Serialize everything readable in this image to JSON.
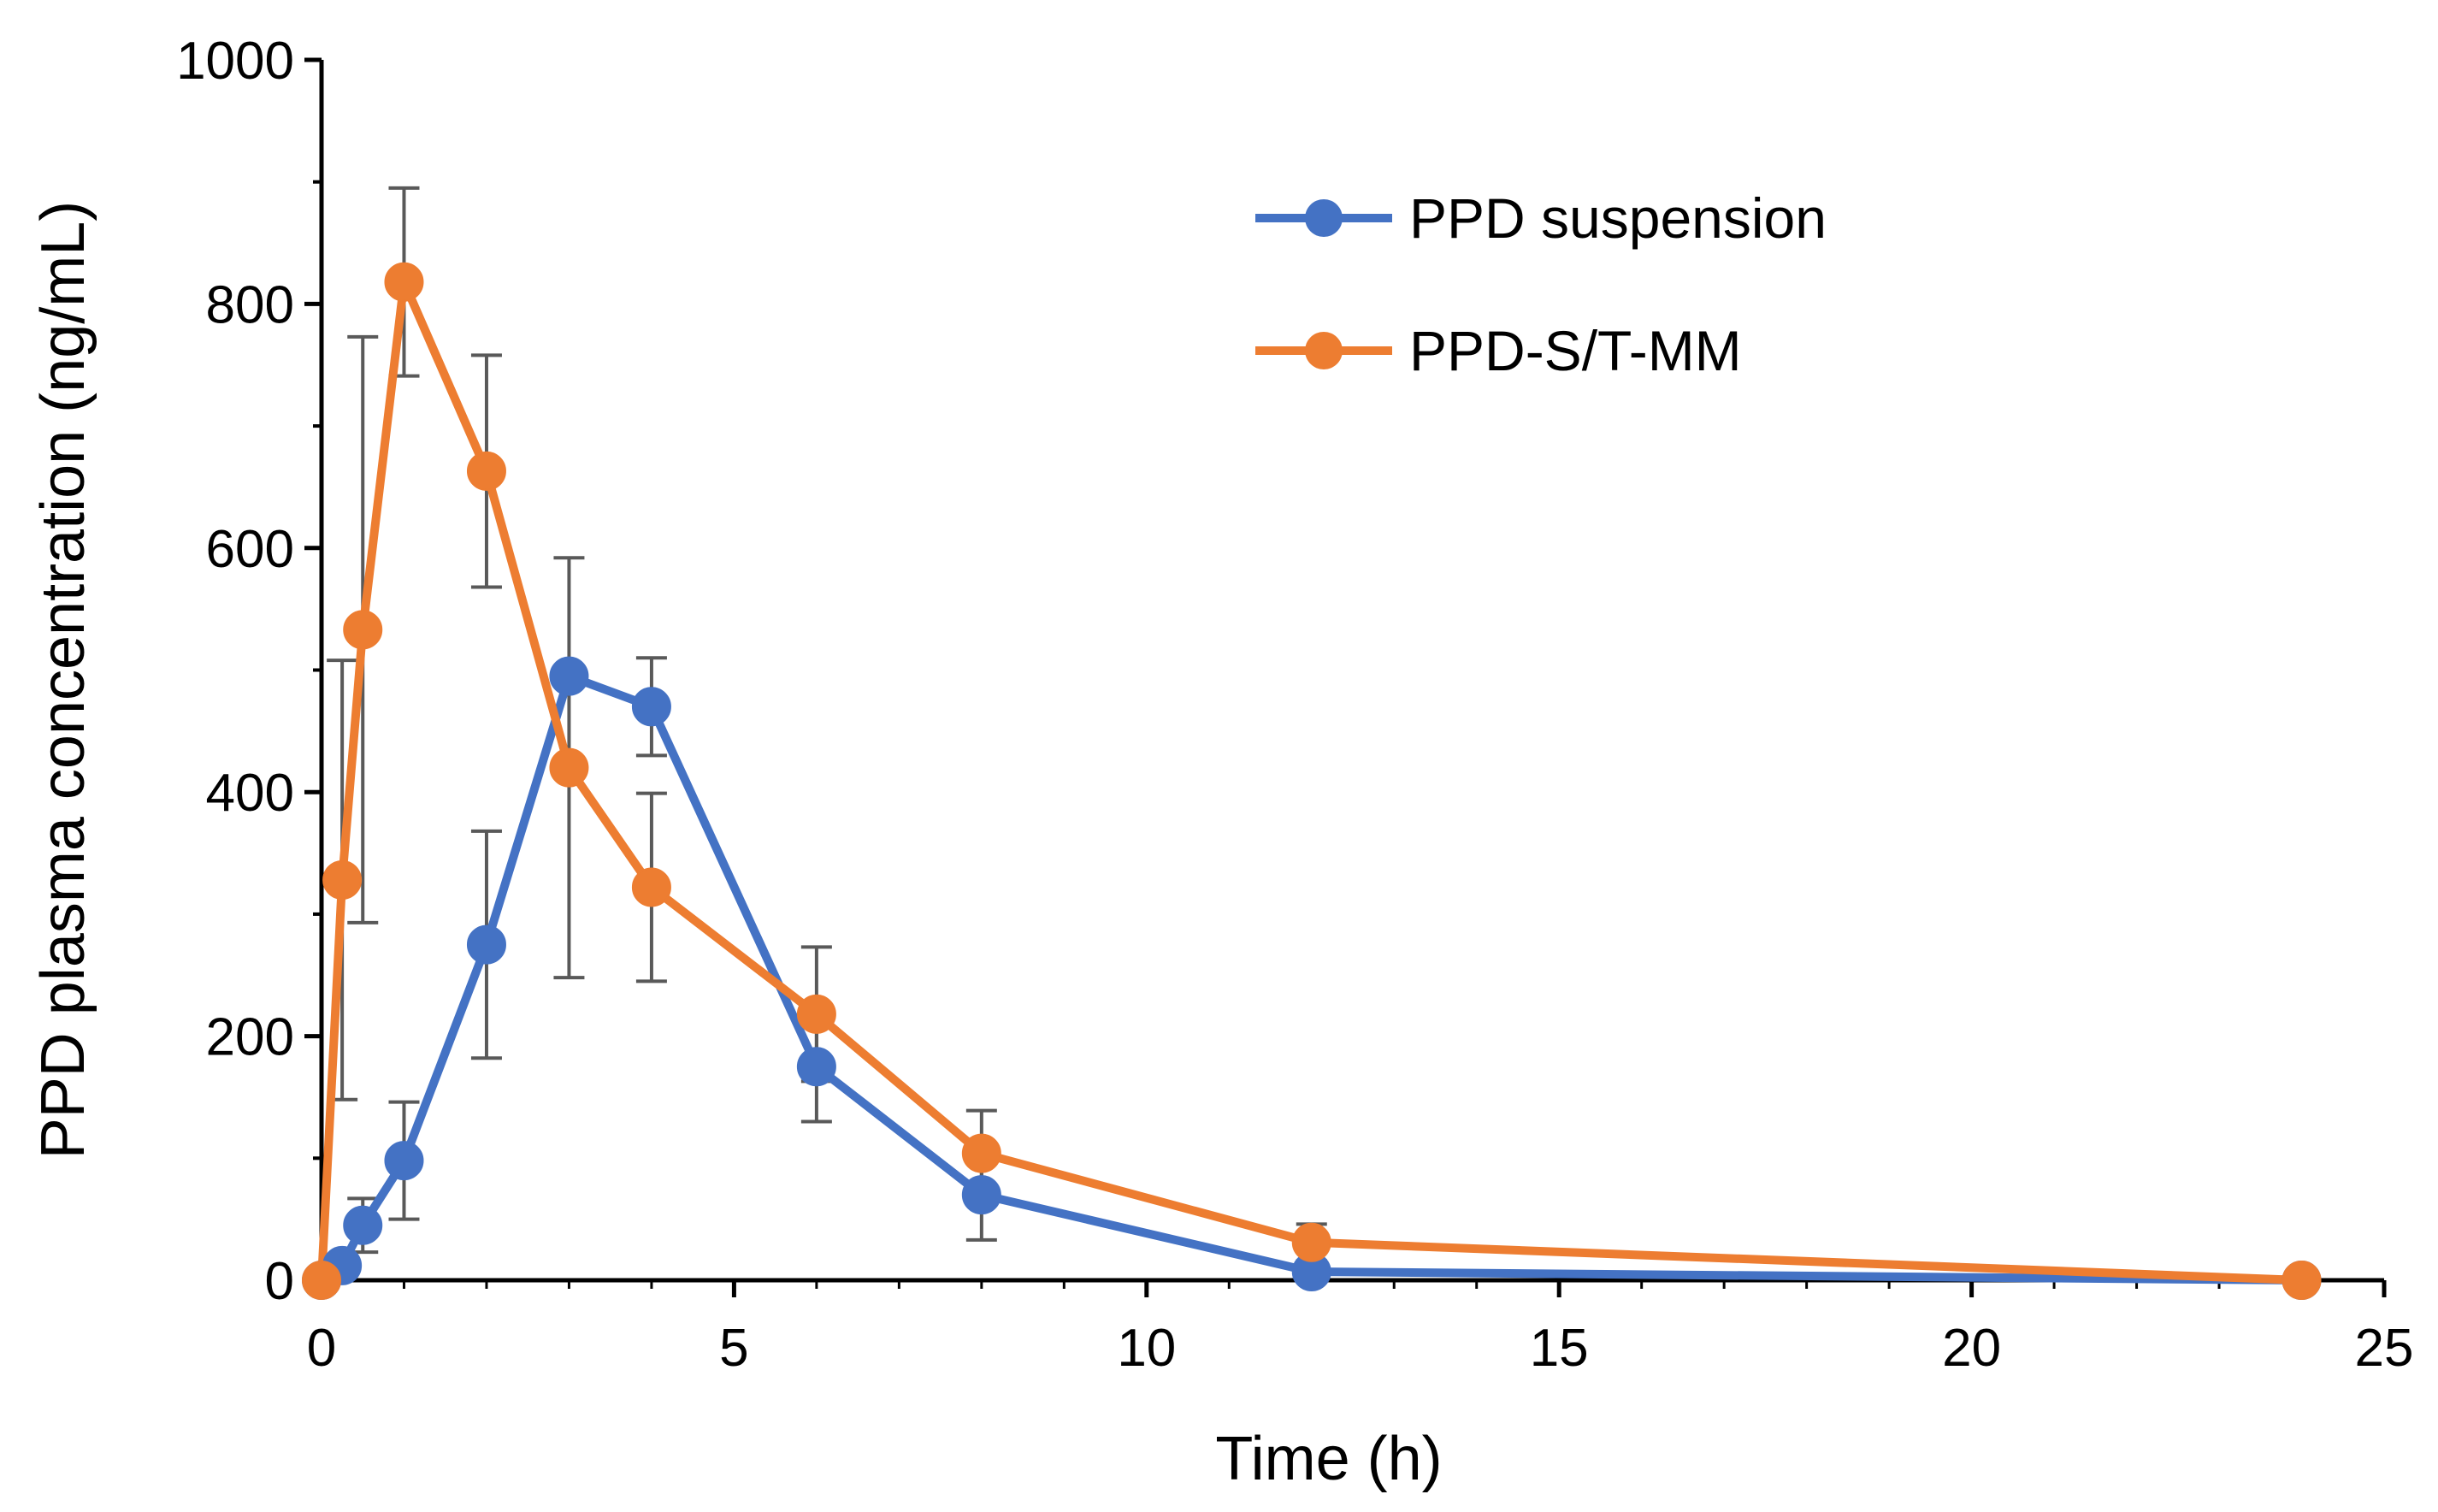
{
  "chart_data": {
    "type": "line",
    "title": "",
    "xlabel": "Time (h)",
    "ylabel": "PPD plasma concentration (ng/mL)",
    "xlim": [
      0,
      25
    ],
    "ylim": [
      0,
      1000
    ],
    "xticks": [
      0,
      5,
      10,
      15,
      20,
      25
    ],
    "yticks": [
      0,
      200,
      400,
      600,
      800,
      1000
    ],
    "xtick_labels": [
      "0",
      "5",
      "10",
      "15",
      "20",
      "25"
    ],
    "ytick_labels": [
      "0",
      "200",
      "400",
      "600",
      "800",
      "1000"
    ],
    "legend_position": "top-right",
    "series": [
      {
        "name": "PPD suspension",
        "color": "#4472C4",
        "x": [
          0,
          0.25,
          0.5,
          1,
          2,
          3,
          4,
          6,
          8,
          12,
          24
        ],
        "values": [
          0,
          12,
          45,
          98,
          275,
          495,
          470,
          175,
          70,
          7,
          0
        ],
        "err": [
          0,
          0,
          22,
          48,
          93,
          0,
          40,
          45,
          37,
          0,
          0
        ]
      },
      {
        "name": "PPD-S/T-MM",
        "color": "#ED7D31",
        "x": [
          0,
          0.25,
          0.5,
          1,
          2,
          3,
          4,
          6,
          8,
          12,
          24
        ],
        "values": [
          0,
          328,
          533,
          818,
          663,
          420,
          322,
          218,
          104,
          31,
          0
        ],
        "err": [
          0,
          180,
          240,
          77,
          95,
          172,
          77,
          55,
          35,
          15,
          0
        ]
      }
    ],
    "error_bar_color": "#595959"
  }
}
